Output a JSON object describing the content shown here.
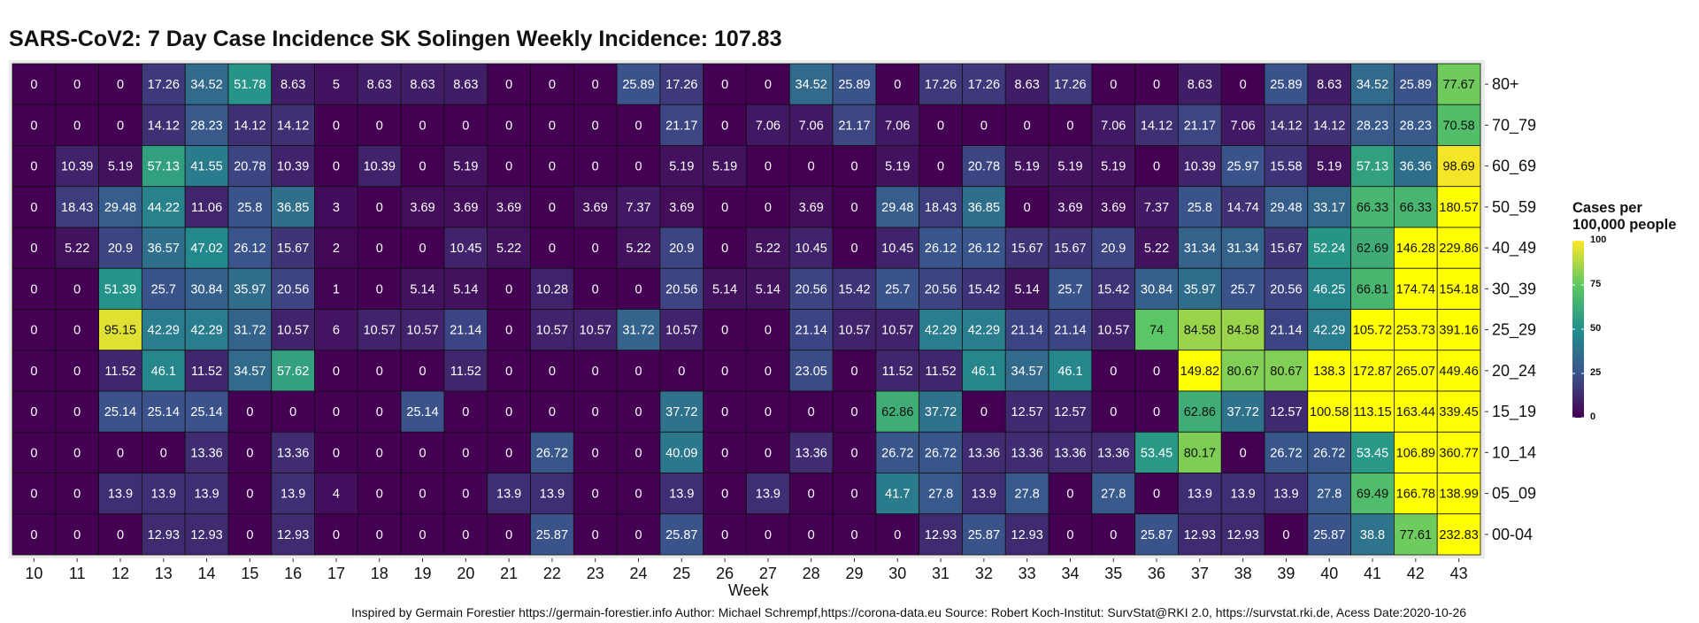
{
  "title": "SARS-CoV2: 7 Day Case Incidence SK Solingen Weekly Incidence: 107.83",
  "caption": "Inspired by Germain Forestier https://germain-forestier.info Author: Michael Schrempf,https://corona-data.eu Source: Robert Koch-Institut: SurvStat@RKI 2.0, https://survstat.rki.de, Acess Date:2020-10-26",
  "chart_data": {
    "type": "heatmap",
    "title": "SARS-CoV2: 7 Day Case Incidence SK Solingen Weekly Incidence: 107.83",
    "xlabel": "Week",
    "ylabel": "",
    "x": [
      "10",
      "11",
      "12",
      "13",
      "14",
      "15",
      "16",
      "17",
      "18",
      "19",
      "20",
      "21",
      "22",
      "23",
      "24",
      "25",
      "26",
      "27",
      "28",
      "29",
      "30",
      "31",
      "32",
      "33",
      "34",
      "35",
      "36",
      "37",
      "38",
      "39",
      "40",
      "41",
      "42",
      "43"
    ],
    "y": [
      "80+",
      "70_79",
      "60_69",
      "50_59",
      "40_49",
      "30_39",
      "25_29",
      "20_24",
      "15_19",
      "10_14",
      "05_09",
      "00-04"
    ],
    "values": [
      [
        "0",
        "0",
        "0",
        "17.26",
        "34.52",
        "51.78",
        "8.63",
        "5",
        "8.63",
        "8.63",
        "8.63",
        "0",
        "0",
        "0",
        "25.89",
        "17.26",
        "0",
        "0",
        "34.52",
        "25.89",
        "0",
        "17.26",
        "17.26",
        "8.63",
        "17.26",
        "0",
        "0",
        "8.63",
        "0",
        "25.89",
        "8.63",
        "34.52",
        "25.89",
        "77.67"
      ],
      [
        "0",
        "0",
        "0",
        "14.12",
        "28.23",
        "14.12",
        "14.12",
        "0",
        "0",
        "0",
        "0",
        "0",
        "0",
        "0",
        "0",
        "21.17",
        "0",
        "7.06",
        "7.06",
        "21.17",
        "7.06",
        "0",
        "0",
        "0",
        "0",
        "7.06",
        "14.12",
        "21.17",
        "7.06",
        "14.12",
        "14.12",
        "28.23",
        "28.23",
        "70.58"
      ],
      [
        "0",
        "10.39",
        "5.19",
        "57.13",
        "41.55",
        "20.78",
        "10.39",
        "0",
        "10.39",
        "0",
        "5.19",
        "0",
        "0",
        "0",
        "0",
        "5.19",
        "5.19",
        "0",
        "0",
        "0",
        "5.19",
        "0",
        "20.78",
        "5.19",
        "5.19",
        "5.19",
        "0",
        "10.39",
        "25.97",
        "15.58",
        "5.19",
        "57.13",
        "36.36",
        "98.69"
      ],
      [
        "0",
        "18.43",
        "29.48",
        "44.22",
        "11.06",
        "25.8",
        "36.85",
        "3",
        "0",
        "3.69",
        "3.69",
        "3.69",
        "0",
        "3.69",
        "7.37",
        "3.69",
        "0",
        "0",
        "3.69",
        "0",
        "29.48",
        "18.43",
        "36.85",
        "0",
        "3.69",
        "3.69",
        "7.37",
        "25.8",
        "14.74",
        "29.48",
        "33.17",
        "66.33",
        "66.33",
        "180.57"
      ],
      [
        "0",
        "5.22",
        "20.9",
        "36.57",
        "47.02",
        "26.12",
        "15.67",
        "2",
        "0",
        "0",
        "10.45",
        "5.22",
        "0",
        "0",
        "5.22",
        "20.9",
        "0",
        "5.22",
        "10.45",
        "0",
        "10.45",
        "26.12",
        "26.12",
        "15.67",
        "15.67",
        "20.9",
        "5.22",
        "31.34",
        "31.34",
        "15.67",
        "52.24",
        "62.69",
        "146.28",
        "229.86"
      ],
      [
        "0",
        "0",
        "51.39",
        "25.7",
        "30.84",
        "35.97",
        "20.56",
        "1",
        "0",
        "5.14",
        "5.14",
        "0",
        "10.28",
        "0",
        "0",
        "20.56",
        "5.14",
        "5.14",
        "20.56",
        "15.42",
        "25.7",
        "20.56",
        "15.42",
        "5.14",
        "25.7",
        "15.42",
        "30.84",
        "35.97",
        "25.7",
        "20.56",
        "46.25",
        "66.81",
        "174.74",
        "154.18"
      ],
      [
        "0",
        "0",
        "95.15",
        "42.29",
        "42.29",
        "31.72",
        "10.57",
        "6",
        "10.57",
        "10.57",
        "21.14",
        "0",
        "10.57",
        "10.57",
        "31.72",
        "10.57",
        "0",
        "0",
        "21.14",
        "10.57",
        "10.57",
        "42.29",
        "42.29",
        "21.14",
        "21.14",
        "10.57",
        "74",
        "84.58",
        "84.58",
        "21.14",
        "42.29",
        "105.72",
        "253.73",
        "391.16"
      ],
      [
        "0",
        "0",
        "11.52",
        "46.1",
        "11.52",
        "34.57",
        "57.62",
        "0",
        "0",
        "0",
        "11.52",
        "0",
        "0",
        "0",
        "0",
        "0",
        "0",
        "0",
        "23.05",
        "0",
        "11.52",
        "11.52",
        "46.1",
        "34.57",
        "46.1",
        "0",
        "0",
        "149.82",
        "80.67",
        "80.67",
        "138.3",
        "172.87",
        "265.07",
        "449.46"
      ],
      [
        "0",
        "0",
        "25.14",
        "25.14",
        "25.14",
        "0",
        "0",
        "0",
        "0",
        "25.14",
        "0",
        "0",
        "0",
        "0",
        "0",
        "37.72",
        "0",
        "0",
        "0",
        "0",
        "62.86",
        "37.72",
        "0",
        "12.57",
        "12.57",
        "0",
        "0",
        "62.86",
        "37.72",
        "12.57",
        "100.58",
        "113.15",
        "163.44",
        "339.45"
      ],
      [
        "0",
        "0",
        "0",
        "0",
        "13.36",
        "0",
        "13.36",
        "0",
        "0",
        "0",
        "0",
        "0",
        "26.72",
        "0",
        "0",
        "40.09",
        "0",
        "0",
        "13.36",
        "0",
        "26.72",
        "26.72",
        "13.36",
        "13.36",
        "13.36",
        "13.36",
        "53.45",
        "80.17",
        "0",
        "26.72",
        "26.72",
        "53.45",
        "106.89",
        "360.77"
      ],
      [
        "0",
        "0",
        "13.9",
        "13.9",
        "13.9",
        "0",
        "13.9",
        "4",
        "0",
        "0",
        "0",
        "13.9",
        "13.9",
        "0",
        "0",
        "13.9",
        "0",
        "13.9",
        "0",
        "0",
        "41.7",
        "27.8",
        "13.9",
        "27.8",
        "0",
        "27.8",
        "0",
        "13.9",
        "13.9",
        "13.9",
        "27.8",
        "69.49",
        "166.78",
        "138.99"
      ],
      [
        "0",
        "0",
        "0",
        "12.93",
        "12.93",
        "0",
        "12.93",
        "0",
        "0",
        "0",
        "0",
        "0",
        "25.87",
        "0",
        "0",
        "25.87",
        "0",
        "0",
        "0",
        "0",
        "0",
        "12.93",
        "25.87",
        "12.93",
        "0",
        "0",
        "25.87",
        "12.93",
        "12.93",
        "0",
        "25.87",
        "38.8",
        "77.61",
        "232.83"
      ]
    ],
    "color_scale": {
      "name": "viridis",
      "limits": [
        0,
        100
      ],
      "title": "Cases per 100,000 people",
      "title_lines": [
        "Cases per",
        "100,000 people"
      ],
      "ticks": [
        "0",
        "25",
        "50",
        "75",
        "100"
      ],
      "stops": [
        "#440154",
        "#3B528B",
        "#21908C",
        "#5DC863",
        "#FDE725"
      ],
      "over_color": "#FFFF00"
    },
    "legend_position": "right"
  }
}
